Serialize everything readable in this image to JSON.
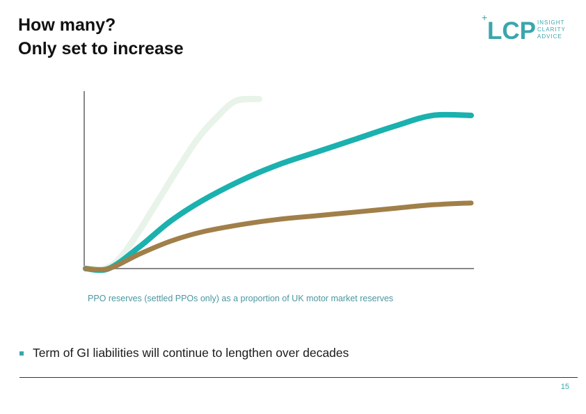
{
  "slide": {
    "title_line1": "How many?",
    "title_line2": "Only set to increase",
    "bullet_text": "Term of GI liabilities will continue to lengthen over decades",
    "page_number": "15"
  },
  "logo": {
    "plus": "+",
    "letters": "LCP",
    "tagline": [
      "INSIGHT",
      "CLARITY",
      "ADVICE"
    ],
    "color": "#3aa6ad"
  },
  "chart_data": {
    "type": "line",
    "title": "",
    "caption": "PPO reserves (settled PPOs only) as a proportion of UK motor market reserves",
    "xlabel": "",
    "ylabel": "",
    "xlim": [
      0,
      100
    ],
    "ylim": [
      0,
      100
    ],
    "grid": false,
    "series": [
      {
        "name": "faint",
        "color": "#e8f3e9",
        "x": [
          0,
          5,
          9,
          14,
          19,
          24,
          29,
          34,
          39,
          45
        ],
        "y": [
          0,
          0,
          6,
          21,
          38,
          55,
          71,
          83,
          92,
          93
        ]
      },
      {
        "name": "teal",
        "color": "#1ab1ae",
        "x": [
          0,
          6,
          14,
          22,
          30,
          40,
          50,
          60,
          70,
          80,
          90,
          100
        ],
        "y": [
          0,
          0,
          12,
          26,
          37,
          48,
          57,
          64,
          71,
          78,
          84,
          84
        ]
      },
      {
        "name": "brown",
        "color": "#a17f49",
        "x": [
          0,
          6,
          14,
          22,
          30,
          40,
          50,
          60,
          70,
          80,
          90,
          100
        ],
        "y": [
          0,
          0,
          8,
          15,
          20,
          24,
          27,
          29,
          31,
          33,
          35,
          36
        ]
      }
    ]
  }
}
